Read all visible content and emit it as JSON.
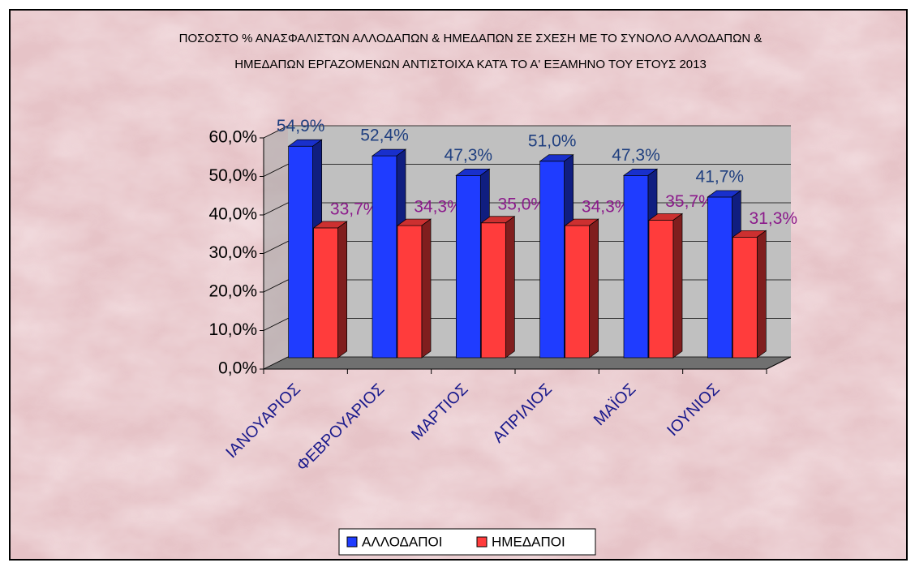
{
  "chart_data": {
    "type": "bar3d",
    "title": [
      "ΠΟΣΟΣΤΟ % ΑΝΑΣΦΑΛΙΣΤΩΝ ΑΛΛΟΔΑΠΩΝ & ΗΜΕΔΑΠΩΝ ΣΕ ΣΧΕΣΗ ΜΕ ΤΟ ΣΥΝΟΛΟ ΑΛΛΟΔΑΠΩΝ &",
      "ΗΜΕΔΑΠΩΝ ΕΡΓΑΖΟΜΕΝΩΝ ΑΝΤΙΣΤΟΙΧΑ ΚΑΤΆ ΤΟ Α' ΕΞΑΜΗΝΟ ΤΟΥ ΕΤΟΥΣ 2013"
    ],
    "categories": [
      "ΙΑΝΟΥΑΡΙΟΣ",
      "ΦΕΒΡΟΥΑΡΙΟΣ",
      "ΜΑΡΤΙΟΣ",
      "ΑΠΡΙΛΙΟΣ",
      "ΜΑΪΟΣ",
      "ΙΟΥΝΙΟΣ"
    ],
    "series": [
      {
        "name": "ΑΛΛΟΔΑΠΟΙ",
        "color": "#1f3cff",
        "values": [
          54.9,
          52.4,
          47.3,
          51.0,
          47.3,
          41.7
        ],
        "value_labels": [
          "54,9%",
          "52,4%",
          "47,3%",
          "51,0%",
          "47,3%",
          "41,7%"
        ]
      },
      {
        "name": "ΗΜΕΔΑΠΟΙ",
        "color": "#ff3c3c",
        "values": [
          33.7,
          34.3,
          35.0,
          34.3,
          35.7,
          31.3
        ],
        "value_labels": [
          "33,7%",
          "34,3%",
          "35,0%",
          "34,3%",
          "35,7%",
          "31,3%"
        ]
      }
    ],
    "ylim": [
      0,
      60
    ],
    "yticks": [
      {
        "value": 0,
        "label": "0,0%"
      },
      {
        "value": 10,
        "label": "10,0%"
      },
      {
        "value": 20,
        "label": "20,0%"
      },
      {
        "value": 30,
        "label": "30,0%"
      },
      {
        "value": 40,
        "label": "40,0%"
      },
      {
        "value": 50,
        "label": "50,0%"
      },
      {
        "value": 60,
        "label": "60,0%"
      }
    ],
    "grid": true,
    "legend": "bottom"
  }
}
